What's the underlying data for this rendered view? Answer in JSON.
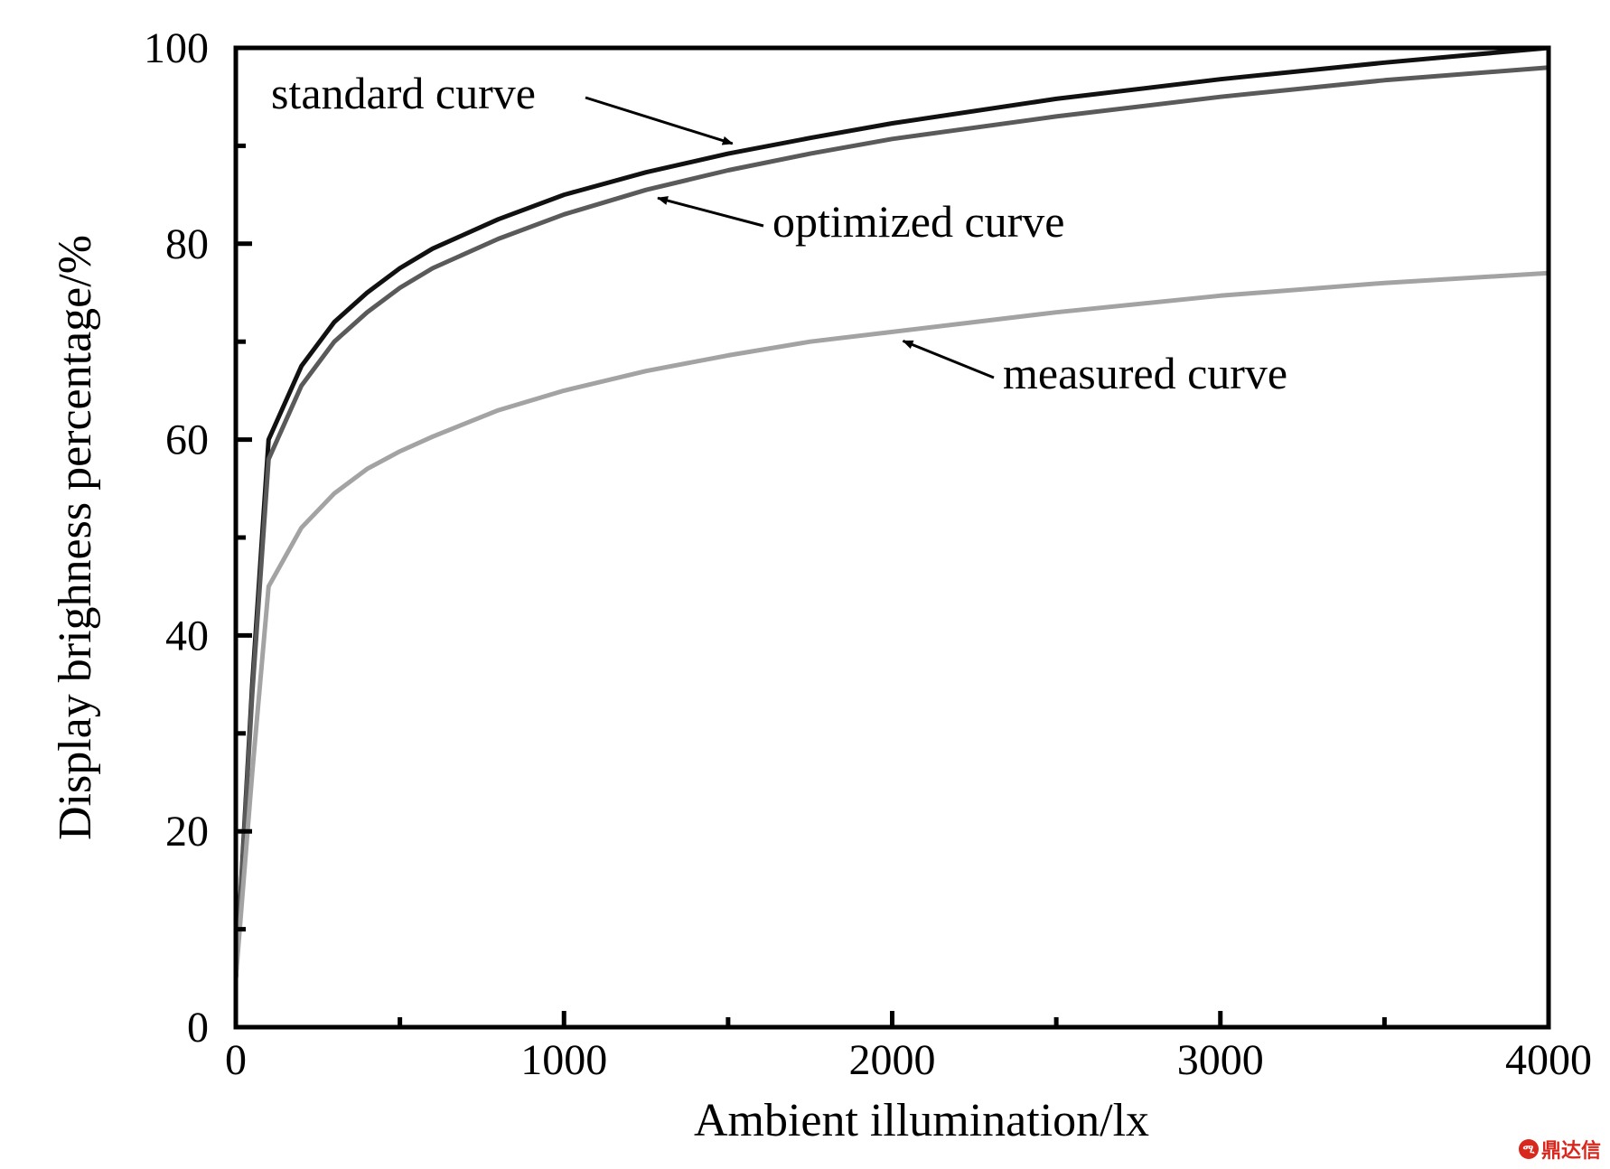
{
  "chart_data": {
    "type": "line",
    "xlabel": "Ambient illumination/lx",
    "ylabel": "Display brighness percentage/%",
    "xlim": [
      0,
      4000
    ],
    "ylim": [
      0,
      100
    ],
    "xticks": [
      0,
      1000,
      2000,
      3000,
      4000
    ],
    "yticks": [
      0,
      20,
      40,
      60,
      80,
      100
    ],
    "x_tick_labels": [
      "0",
      "1000",
      "2000",
      "3000",
      "4000"
    ],
    "y_tick_labels": [
      "0",
      "20",
      "40",
      "60",
      "80",
      "100"
    ],
    "grid": false,
    "legend": "none",
    "series": [
      {
        "name": "standard curve",
        "color": "#111111",
        "x": [
          0,
          50,
          100,
          200,
          300,
          400,
          500,
          600,
          800,
          1000,
          1250,
          1500,
          1750,
          2000,
          2500,
          3000,
          3500,
          4000
        ],
        "y": [
          5,
          35,
          60,
          67.5,
          72,
          75,
          77.5,
          79.5,
          82.5,
          85,
          87.3,
          89.2,
          90.8,
          92.3,
          94.8,
          96.8,
          98.5,
          100
        ]
      },
      {
        "name": "optimized curve",
        "color": "#5a5a5a",
        "x": [
          0,
          50,
          100,
          200,
          300,
          400,
          500,
          600,
          800,
          1000,
          1250,
          1500,
          1750,
          2000,
          2500,
          3000,
          3500,
          4000
        ],
        "y": [
          5,
          34,
          58,
          65.5,
          70,
          73,
          75.5,
          77.5,
          80.5,
          83,
          85.5,
          87.5,
          89.2,
          90.7,
          93,
          95,
          96.7,
          98
        ]
      },
      {
        "name": "measured curve",
        "color": "#a3a3a3",
        "x": [
          0,
          50,
          100,
          200,
          300,
          400,
          500,
          600,
          800,
          1000,
          1250,
          1500,
          1750,
          2000,
          2500,
          3000,
          3500,
          4000
        ],
        "y": [
          5,
          26,
          45,
          51,
          54.5,
          57,
          58.8,
          60.3,
          63,
          65,
          67,
          68.6,
          70,
          71,
          73,
          74.7,
          76,
          77
        ]
      }
    ],
    "annotations": [
      {
        "text": "standard curve",
        "series": 0,
        "point_x": 1530
      },
      {
        "text": "optimized curve",
        "series": 1,
        "point_x": 1250
      },
      {
        "text": "measured curve",
        "series": 2,
        "point_x": 2000
      }
    ]
  },
  "watermark": {
    "logo": "ሚ",
    "text": "鼎达信"
  }
}
